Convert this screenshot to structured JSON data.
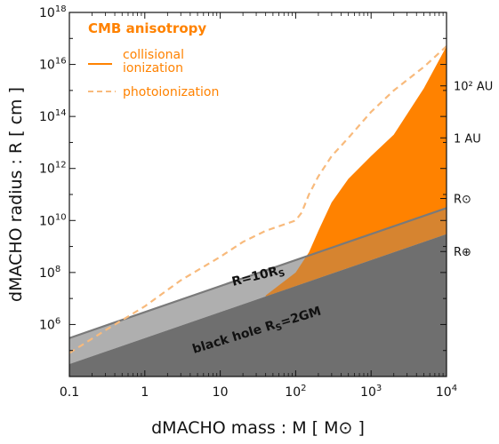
{
  "chart_data": {
    "type": "area",
    "xlabel": "dMACHO mass : M  [ M⊙ ]",
    "ylabel": "dMACHO radius : R  [ cm ]",
    "x_scale": "log",
    "y_scale": "log",
    "xlim": [
      0.1,
      10000
    ],
    "ylim": [
      10000.0,
      1e+18
    ],
    "x_ticks": [
      {
        "value": 0.1,
        "base": "0.1",
        "exp": ""
      },
      {
        "value": 1,
        "base": "1",
        "exp": ""
      },
      {
        "value": 10,
        "base": "10",
        "exp": ""
      },
      {
        "value": 100,
        "base": "10",
        "exp": "2"
      },
      {
        "value": 1000,
        "base": "10",
        "exp": "3"
      },
      {
        "value": 10000,
        "base": "10",
        "exp": "4"
      }
    ],
    "y_ticks": [
      {
        "value": 1000000.0,
        "base": "10",
        "exp": "6"
      },
      {
        "value": 100000000.0,
        "base": "10",
        "exp": "8"
      },
      {
        "value": 10000000000.0,
        "base": "10",
        "exp": "10"
      },
      {
        "value": 1000000000000.0,
        "base": "10",
        "exp": "12"
      },
      {
        "value": 100000000000000.0,
        "base": "10",
        "exp": "14"
      },
      {
        "value": 1e+16,
        "base": "10",
        "exp": "16"
      },
      {
        "value": 1e+18,
        "base": "10",
        "exp": "18"
      }
    ],
    "right_axis_refs": [
      {
        "label": "10² AU",
        "y": 1500000000000000.0
      },
      {
        "label": "1 AU",
        "y": 15000000000000.0
      },
      {
        "label": "R⊙",
        "y": 70000000000.0
      },
      {
        "label": "R⊕",
        "y": 640000000.0
      }
    ],
    "legend": {
      "title": "CMB anisotropy",
      "position": "top-left",
      "entries": [
        {
          "label_line1": "collisional",
          "label_line2": "ionization",
          "style": "solid"
        },
        {
          "label_line1": "photoionization",
          "label_line2": "",
          "style": "dashed"
        }
      ]
    },
    "annotations": {
      "r10": {
        "prefix": "R=10R",
        "sub": "S"
      },
      "bh": {
        "prefix": "black hole R",
        "sub": "S",
        "suffix": "=2GM"
      }
    },
    "series": [
      {
        "name": "black hole R_S=2GM",
        "kind": "lower-bound-line",
        "x": [
          0.1,
          10000
        ],
        "y": [
          30000.0,
          3000000000.0
        ]
      },
      {
        "name": "R=10R_S",
        "kind": "line",
        "x": [
          0.1,
          10000
        ],
        "y": [
          300000.0,
          30000000000.0
        ]
      },
      {
        "name": "collisional ionization",
        "kind": "excluded-region",
        "x": [
          40,
          100,
          150,
          200,
          300,
          500,
          1000,
          2000,
          5000,
          10000
        ],
        "y": [
          13000000.0,
          100000000.0,
          600000000.0,
          4000000000.0,
          50000000000.0,
          400000000000.0,
          3000000000000.0,
          20000000000000.0,
          1200000000000000.0,
          5e+16
        ]
      },
      {
        "name": "photoionization",
        "kind": "dashed-line",
        "x": [
          0.1,
          0.3,
          1,
          3,
          10,
          20,
          40,
          60,
          80,
          100,
          120,
          150,
          200,
          300,
          500,
          1000,
          2000,
          5000,
          10000
        ],
        "y": [
          80000.0,
          600000.0,
          5000000.0,
          50000000.0,
          400000000.0,
          1500000000.0,
          4000000000.0,
          6000000000.0,
          8000000000.0,
          10000000000.0,
          20000000000.0,
          100000000000.0,
          500000000000.0,
          3000000000000.0,
          15000000000000.0,
          150000000000000.0,
          1000000000000000.0,
          8000000000000000.0,
          5e+16
        ]
      }
    ],
    "colors": {
      "excluded_dark": "#6f6f6f",
      "excluded_light": "#c4c4c4",
      "collisional": "#ff8200",
      "photoionization": "#f8ba7c",
      "line_10rs": "#7a7a7a",
      "legend_text": "#ff8200"
    }
  }
}
